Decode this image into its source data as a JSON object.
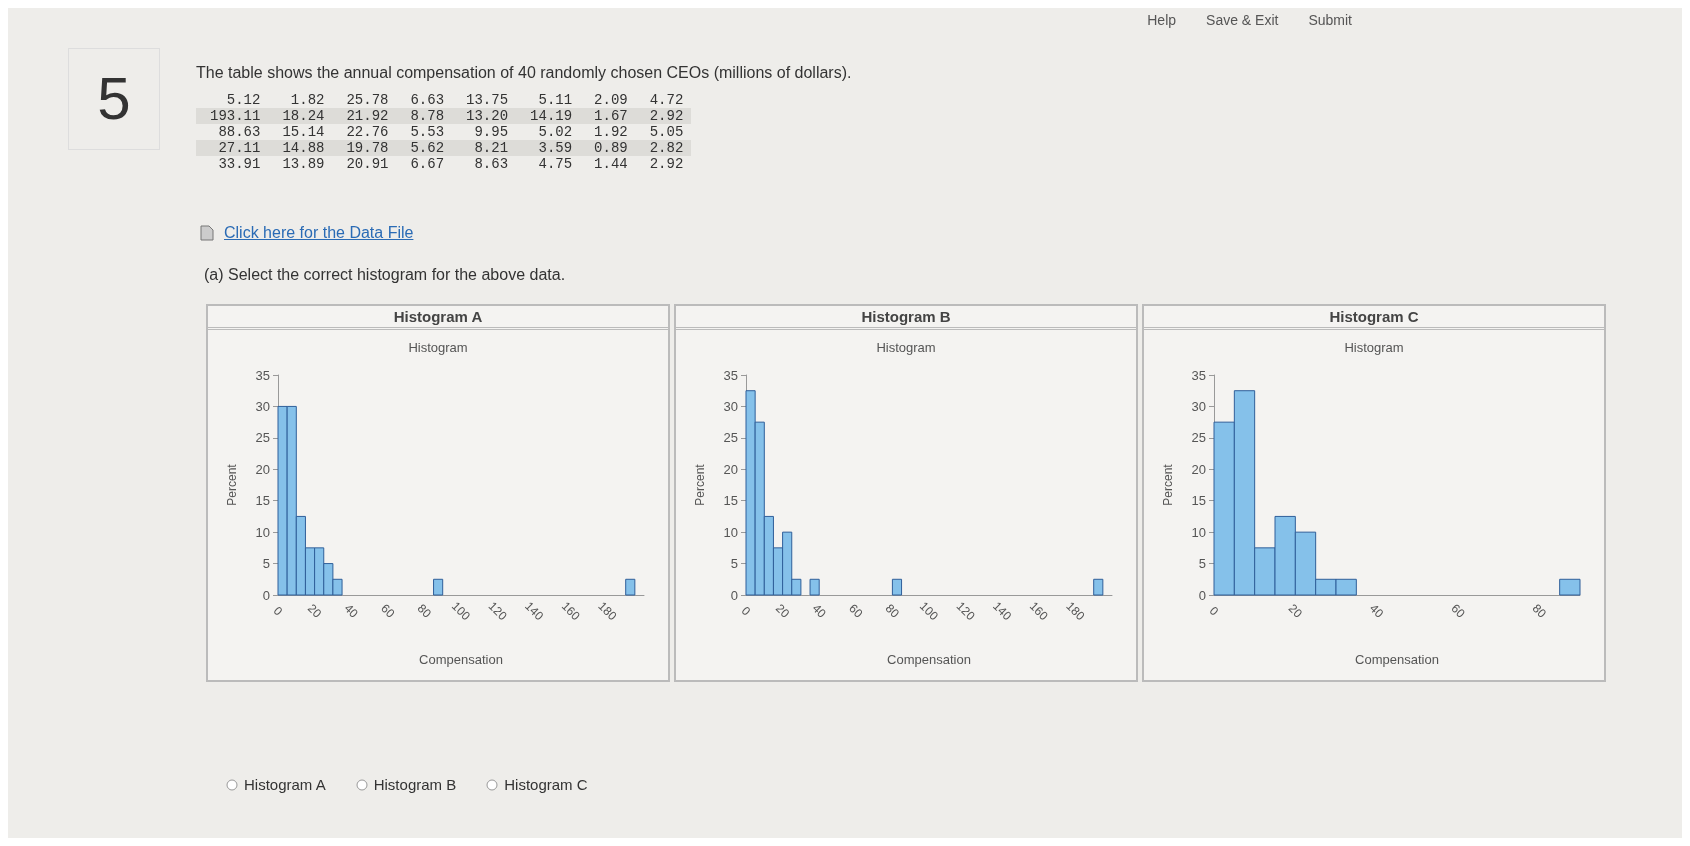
{
  "chart_data": [
    {
      "type": "histogram",
      "title": "Histogram A",
      "subtitle": "Histogram",
      "xlabel": "Compensation",
      "ylabel": "Percent",
      "color": "#85c1ea",
      "bins": [
        0,
        5,
        10,
        15,
        20,
        25,
        30,
        35,
        40,
        45,
        50,
        55,
        60,
        65,
        70,
        75,
        80,
        85,
        90,
        95,
        100,
        105,
        110,
        115,
        120,
        125,
        130,
        135,
        140,
        145,
        150,
        155,
        160,
        165,
        170,
        175,
        180,
        185,
        190,
        195
      ],
      "values": [
        30,
        30,
        12.5,
        7.5,
        7.5,
        5,
        2.5,
        0,
        0,
        0,
        0,
        0,
        0,
        0,
        0,
        0,
        0,
        2.5,
        0,
        0,
        0,
        0,
        0,
        0,
        0,
        0,
        0,
        0,
        0,
        0,
        0,
        0,
        0,
        0,
        0,
        0,
        0,
        0,
        2.5
      ],
      "xlim": [
        0,
        200
      ],
      "xticks": [
        0,
        20,
        40,
        60,
        80,
        100,
        120,
        140,
        160,
        180
      ],
      "ylim": [
        0,
        35
      ],
      "yticks": [
        0,
        5,
        10,
        15,
        20,
        25,
        30,
        35
      ],
      "annotations": [
        "5",
        "The table shows the annual compensation of 40 randomly chosen CEOs (millions of dollars).",
        "5.12 1.82 25.78 6.63 13.75 5.11 2.09 4.72",
        "193.11 18.24 21.92 8.78 13.20 14.19 1.67 2.92",
        "88.63 15.14 22.76 5.53 9.95 5.02 1.92 5.05",
        "27.11 14.88 19.78 5.62 8.21 3.59 0.89 2.82",
        "33.91 13.89 20.91 6.67 8.63 4.75 1.44 2.92",
        "Click here for the Data File",
        "(a) Select the correct histogram for the above data.",
        "Histogram A",
        "Histogram B",
        "Histogram C",
        "Help",
        "Save & Exit",
        "Submit"
      ]
    },
    {
      "type": "histogram",
      "title": "Histogram B",
      "subtitle": "Histogram",
      "xlabel": "Compensation",
      "ylabel": "Percent",
      "color": "#85c1ea",
      "bins": [
        0,
        5,
        10,
        15,
        20,
        25,
        30,
        35,
        40,
        45,
        50,
        55,
        60,
        65,
        70,
        75,
        80,
        85,
        90,
        95,
        100,
        105,
        110,
        115,
        120,
        125,
        130,
        135,
        140,
        145,
        150,
        155,
        160,
        165,
        170,
        175,
        180,
        185,
        190,
        195
      ],
      "values": [
        32.5,
        27.5,
        12.5,
        7.5,
        10,
        2.5,
        0,
        2.5,
        0,
        0,
        0,
        0,
        0,
        0,
        0,
        0,
        2.5,
        0,
        0,
        0,
        0,
        0,
        0,
        0,
        0,
        0,
        0,
        0,
        0,
        0,
        0,
        0,
        0,
        0,
        0,
        0,
        0,
        0,
        2.5
      ],
      "xlim": [
        0,
        200
      ],
      "xticks": [
        0,
        20,
        40,
        60,
        80,
        100,
        120,
        140,
        160,
        180
      ],
      "ylim": [
        0,
        35
      ],
      "yticks": [
        0,
        5,
        10,
        15,
        20,
        25,
        30,
        35
      ]
    },
    {
      "type": "histogram",
      "title": "Histogram C",
      "subtitle": "Histogram",
      "xlabel": "Compensation",
      "ylabel": "Percent",
      "color": "#85c1ea",
      "bins": [
        0,
        5,
        10,
        15,
        20,
        25,
        30,
        35,
        40,
        45,
        50,
        55,
        60,
        65,
        70,
        75,
        80,
        85,
        90
      ],
      "values": [
        27.5,
        32.5,
        7.5,
        12.5,
        10,
        2.5,
        2.5,
        0,
        0,
        0,
        0,
        0,
        0,
        0,
        0,
        0,
        0,
        2.5
      ],
      "xlim": [
        0,
        90
      ],
      "xticks": [
        0,
        20,
        40,
        60,
        80
      ],
      "ylim": [
        0,
        35
      ],
      "yticks": [
        0,
        5,
        10,
        15,
        20,
        25,
        30,
        35
      ]
    }
  ]
}
